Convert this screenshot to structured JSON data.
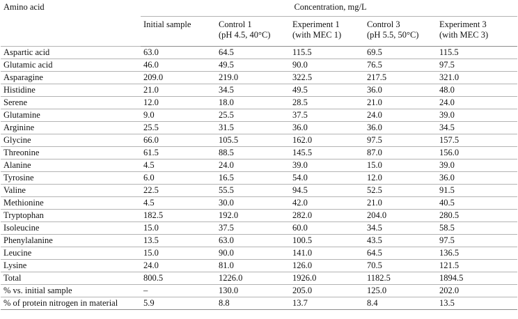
{
  "header": {
    "row_label": "Amino acid",
    "group_label": "Concentration, mg/L",
    "columns": [
      {
        "line1": "Initial sample",
        "line2": ""
      },
      {
        "line1": "Control 1",
        "line2": "(pH 4.5, 40°C)"
      },
      {
        "line1": "Experiment 1",
        "line2": "(with MEC 1)"
      },
      {
        "line1": "Control 3",
        "line2": "(pH 5.5, 50°C)"
      },
      {
        "line1": "Experiment 3",
        "line2": "(with MEC 3)"
      }
    ]
  },
  "rows": [
    {
      "name": "Aspartic acid",
      "values": [
        "63.0",
        "64.5",
        "115.5",
        "69.5",
        "115.5"
      ]
    },
    {
      "name": "Glutamic acid",
      "values": [
        "46.0",
        "49.5",
        "90.0",
        "76.5",
        "97.5"
      ]
    },
    {
      "name": "Asparagine",
      "values": [
        "209.0",
        "219.0",
        "322.5",
        "217.5",
        "321.0"
      ]
    },
    {
      "name": "Histidine",
      "values": [
        "21.0",
        "34.5",
        "49.5",
        "36.0",
        "48.0"
      ]
    },
    {
      "name": "Serene",
      "values": [
        "12.0",
        "18.0",
        "28.5",
        "21.0",
        "24.0"
      ]
    },
    {
      "name": "Glutamine",
      "values": [
        "9.0",
        "25.5",
        "37.5",
        "24.0",
        "39.0"
      ]
    },
    {
      "name": "Arginine",
      "values": [
        "25.5",
        "31.5",
        "36.0",
        "36.0",
        "34.5"
      ]
    },
    {
      "name": "Glycine",
      "values": [
        "66.0",
        "105.5",
        "162.0",
        "97.5",
        "157.5"
      ]
    },
    {
      "name": "Threonine",
      "values": [
        "61.5",
        "88.5",
        "145.5",
        "87.0",
        "156.0"
      ]
    },
    {
      "name": "Alanine",
      "values": [
        "4.5",
        "24.0",
        "39.0",
        "15.0",
        "39.0"
      ]
    },
    {
      "name": "Tyrosine",
      "values": [
        "6.0",
        "16.5",
        "54.0",
        "12.0",
        "36.0"
      ]
    },
    {
      "name": "Valine",
      "values": [
        "22.5",
        "55.5",
        "94.5",
        "52.5",
        "91.5"
      ]
    },
    {
      "name": "Methionine",
      "values": [
        "4.5",
        "30.0",
        "42.0",
        "21.0",
        "40.5"
      ]
    },
    {
      "name": "Tryptophan",
      "values": [
        "182.5",
        "192.0",
        "282.0",
        "204.0",
        "280.5"
      ]
    },
    {
      "name": "Isoleucine",
      "values": [
        "15.0",
        "37.5",
        "60.0",
        "34.5",
        "58.5"
      ]
    },
    {
      "name": "Phenylalanine",
      "values": [
        "13.5",
        "63.0",
        "100.5",
        "43.5",
        "97.5"
      ]
    },
    {
      "name": "Leucine",
      "values": [
        "15.0",
        "90.0",
        "141.0",
        "64.5",
        "136.5"
      ]
    },
    {
      "name": "Lysine",
      "values": [
        "24.0",
        "81.0",
        "126.0",
        "70.5",
        "121.5"
      ]
    },
    {
      "name": "Total",
      "values": [
        "800.5",
        "1226.0",
        "1926.0",
        "1182.5",
        "1894.5"
      ]
    },
    {
      "name": "% vs. initial sample",
      "values": [
        "–",
        "130.0",
        "205.0",
        "125.0",
        "202.0"
      ]
    },
    {
      "name": "% of protein nitrogen in material",
      "values": [
        "5.9",
        "8.8",
        "13.7",
        "8.4",
        "13.5"
      ]
    }
  ]
}
